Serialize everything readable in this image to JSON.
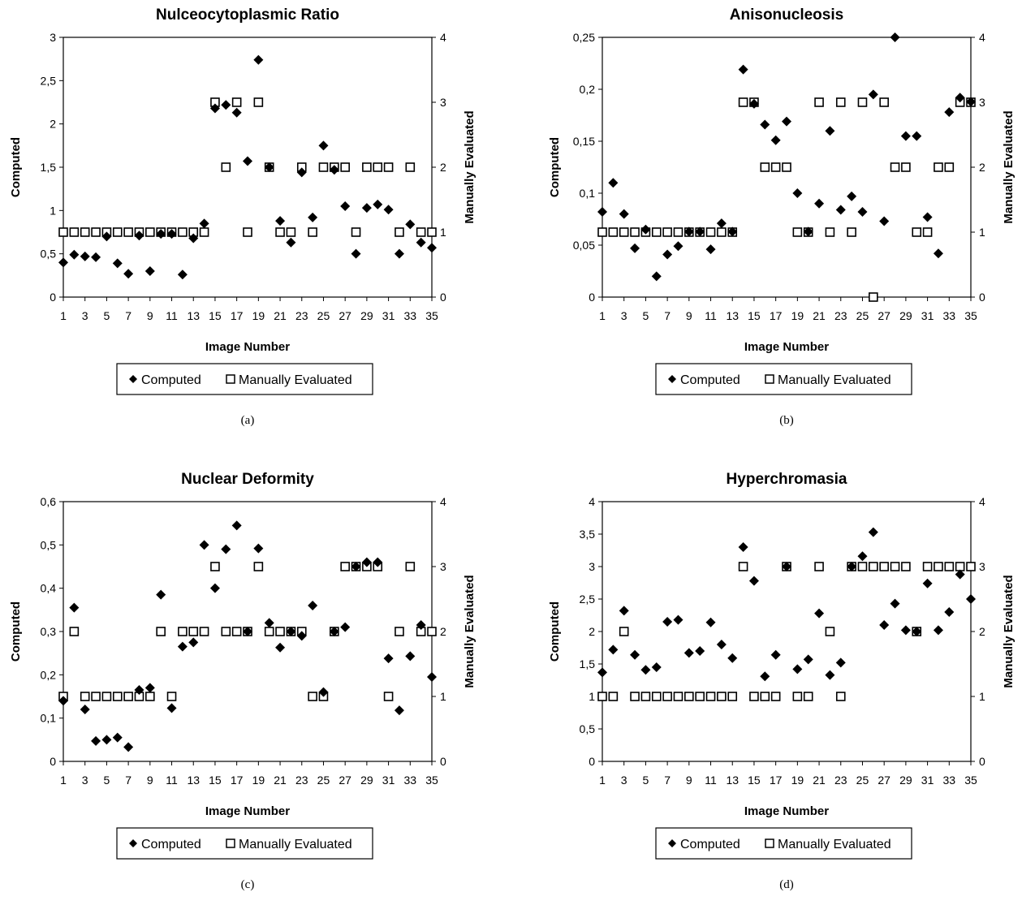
{
  "charts": [
    {
      "type": "scatter",
      "title": "Nulceocytoplasmic Ratio",
      "xlabel": "Image Number",
      "ylabel": "Computed",
      "y2label": "Manually Evaluated",
      "sublabel": "(a)",
      "legend": [
        "Computed",
        "Manually Evaluated"
      ],
      "yticks": [
        "0",
        "0,5",
        "1",
        "1,5",
        "2",
        "2,5",
        "3"
      ],
      "y2ticks": [
        "0",
        "1",
        "2",
        "3",
        "4"
      ],
      "xticks": [
        "1",
        "3",
        "5",
        "7",
        "9",
        "11",
        "13",
        "15",
        "17",
        "19",
        "21",
        "23",
        "25",
        "27",
        "29",
        "31",
        "33",
        "35"
      ],
      "ylim": [
        0,
        3
      ],
      "y2lim": [
        0,
        4
      ],
      "xlim": [
        1,
        35
      ],
      "computed": [
        0.4,
        0.49,
        0.47,
        0.46,
        0.7,
        0.39,
        0.27,
        0.71,
        0.3,
        0.73,
        0.73,
        0.26,
        0.68,
        0.85,
        2.18,
        2.22,
        2.13,
        1.57,
        2.74,
        1.5,
        0.88,
        0.63,
        1.44,
        0.92,
        1.75,
        1.47,
        1.05,
        0.5,
        1.03,
        1.07,
        1.01,
        0.5,
        0.84,
        0.63,
        0.57
      ],
      "manual": [
        1,
        1,
        1,
        1,
        1,
        1,
        1,
        1,
        1,
        1,
        1,
        1,
        1,
        1,
        3,
        2,
        3,
        1,
        3,
        2,
        1,
        1,
        2,
        1,
        2,
        2,
        2,
        1,
        2,
        2,
        2,
        1,
        2,
        1,
        1
      ]
    },
    {
      "type": "scatter",
      "title": "Anisonucleosis",
      "xlabel": "Image Number",
      "ylabel": "Computed",
      "y2label": "Manually Evaluated",
      "sublabel": "(b)",
      "legend": [
        "Computed",
        "Manually Evaluated"
      ],
      "yticks": [
        "0",
        "0,05",
        "0,1",
        "0,15",
        "0,2",
        "0,25"
      ],
      "y2ticks": [
        "0",
        "1",
        "2",
        "3",
        "4"
      ],
      "xticks": [
        "1",
        "3",
        "5",
        "7",
        "9",
        "11",
        "13",
        "15",
        "17",
        "19",
        "21",
        "23",
        "25",
        "27",
        "29",
        "31",
        "33",
        "35"
      ],
      "ylim": [
        0,
        0.25
      ],
      "y2lim": [
        0,
        4
      ],
      "xlim": [
        1,
        35
      ],
      "computed": [
        0.082,
        0.11,
        0.08,
        0.047,
        0.065,
        0.02,
        0.041,
        0.049,
        0.063,
        0.063,
        0.046,
        0.071,
        0.063,
        0.219,
        0.186,
        0.166,
        0.151,
        0.169,
        0.1,
        0.063,
        0.09,
        0.16,
        0.084,
        0.097,
        0.082,
        0.195,
        0.073,
        0.25,
        0.155,
        0.155,
        0.077,
        0.042,
        0.178,
        0.192,
        0.188
      ],
      "manual": [
        1,
        1,
        1,
        1,
        1,
        1,
        1,
        1,
        1,
        1,
        1,
        1,
        1,
        3,
        3,
        2,
        2,
        2,
        1,
        1,
        3,
        1,
        3,
        1,
        3,
        0,
        3,
        2,
        2,
        1,
        1,
        2,
        2,
        3,
        3
      ]
    },
    {
      "type": "scatter",
      "title": "Nuclear Deformity",
      "xlabel": "Image Number",
      "ylabel": "Computed",
      "y2label": "Manually Evaluated",
      "sublabel": "(c)",
      "legend": [
        "Computed",
        "Manually Evaluated"
      ],
      "yticks": [
        "0",
        "0,1",
        "0,2",
        "0,3",
        "0,4",
        "0,5",
        "0,6"
      ],
      "y2ticks": [
        "0",
        "1",
        "2",
        "3",
        "4"
      ],
      "xticks": [
        "1",
        "3",
        "5",
        "7",
        "9",
        "11",
        "13",
        "15",
        "17",
        "19",
        "21",
        "23",
        "25",
        "27",
        "29",
        "31",
        "33",
        "35"
      ],
      "ylim": [
        0,
        0.6
      ],
      "y2lim": [
        0,
        4
      ],
      "xlim": [
        1,
        35
      ],
      "computed": [
        0.14,
        0.355,
        0.12,
        0.047,
        0.05,
        0.055,
        0.033,
        0.165,
        0.17,
        0.385,
        0.123,
        0.265,
        0.275,
        0.5,
        0.4,
        0.49,
        0.545,
        0.3,
        0.492,
        0.32,
        0.263,
        0.3,
        0.29,
        0.36,
        0.16,
        0.3,
        0.31,
        0.45,
        0.46,
        0.46,
        0.238,
        0.118,
        0.243,
        0.315,
        0.195
      ],
      "manual": [
        1,
        2,
        1,
        1,
        1,
        1,
        1,
        1,
        1,
        2,
        1,
        2,
        2,
        2,
        3,
        2,
        2,
        2,
        3,
        2,
        2,
        2,
        2,
        1,
        1,
        2,
        3,
        3,
        3,
        3,
        1,
        2,
        3,
        2,
        2
      ]
    },
    {
      "type": "scatter",
      "title": "Hyperchromasia",
      "xlabel": "Image Number",
      "ylabel": "Computed",
      "y2label": "Manually Evaluated",
      "sublabel": "(d)",
      "legend": [
        "Computed",
        "Manually Evaluated"
      ],
      "yticks": [
        "0",
        "0,5",
        "1",
        "1,5",
        "2",
        "2,5",
        "3",
        "3,5",
        "4"
      ],
      "y2ticks": [
        "0",
        "1",
        "2",
        "3",
        "4"
      ],
      "xticks": [
        "1",
        "3",
        "5",
        "7",
        "9",
        "11",
        "13",
        "15",
        "17",
        "19",
        "21",
        "23",
        "25",
        "27",
        "29",
        "31",
        "33",
        "35"
      ],
      "ylim": [
        0,
        4
      ],
      "y2lim": [
        0,
        4
      ],
      "xlim": [
        1,
        35
      ],
      "computed": [
        1.37,
        1.72,
        2.32,
        1.64,
        1.41,
        1.45,
        2.15,
        2.18,
        1.67,
        1.7,
        2.14,
        1.8,
        1.59,
        3.3,
        2.78,
        1.31,
        1.64,
        3.0,
        1.42,
        1.57,
        2.28,
        1.33,
        1.52,
        3.0,
        3.16,
        3.53,
        2.1,
        2.43,
        2.02,
        2.0,
        2.74,
        2.02,
        2.3,
        2.88,
        2.5
      ],
      "manual": [
        1,
        1,
        2,
        1,
        1,
        1,
        1,
        1,
        1,
        1,
        1,
        1,
        1,
        3,
        1,
        1,
        1,
        3,
        1,
        1,
        3,
        2,
        1,
        3,
        3,
        3,
        3,
        3,
        3,
        2,
        3,
        3,
        3,
        3,
        3
      ]
    }
  ]
}
